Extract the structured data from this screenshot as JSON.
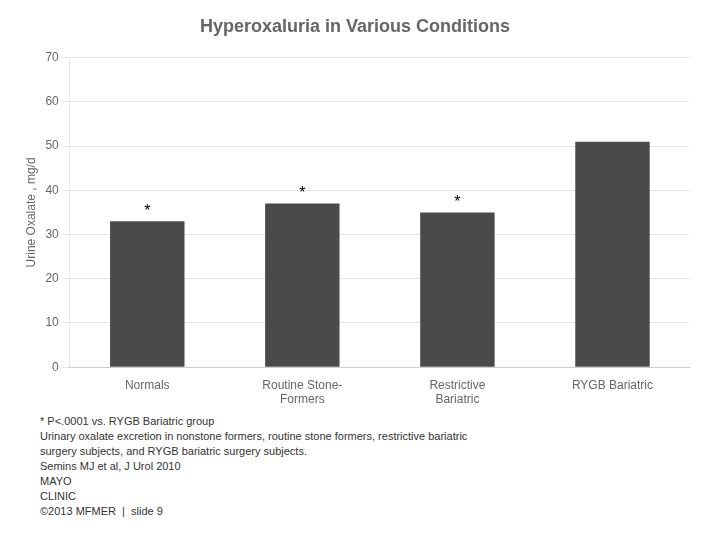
{
  "chart_data": {
    "type": "bar",
    "title": "Hyperoxaluria in Various Conditions",
    "categories": [
      "Normals",
      "Routine Stone-\nFormers",
      "Restrictive\nBariatric",
      "RYGB Bariatric"
    ],
    "values": [
      33,
      37,
      35,
      51
    ],
    "color": "#4A4A4A",
    "ylabel": "Urine Oxalate , mg/d",
    "ylim": [
      0,
      70
    ],
    "yticks": [
      0,
      10,
      20,
      30,
      40,
      50,
      60,
      70
    ],
    "grid": true,
    "annotations": [
      {
        "text": "*",
        "category": "Normals"
      },
      {
        "text": "*",
        "category": "Routine Stone-\nFormers"
      },
      {
        "text": "*",
        "category": "Restrictive\nBariatric"
      },
      {
        "text": "* P<.0001 vs. RYGB Bariatric group"
      },
      {
        "text": "Urinary oxalate excretion in nonstone formers, routine stone formers, restrictive bariatric"
      },
      {
        "text": "surgery subjects, and RYGB bariatric surgery subjects."
      },
      {
        "text": "Semins MJ et al, J Urol 2010"
      },
      {
        "text": "MAYO"
      },
      {
        "text": "CLINIC"
      },
      {
        "text": "©2013 MFMER  |  slide 9"
      }
    ]
  }
}
